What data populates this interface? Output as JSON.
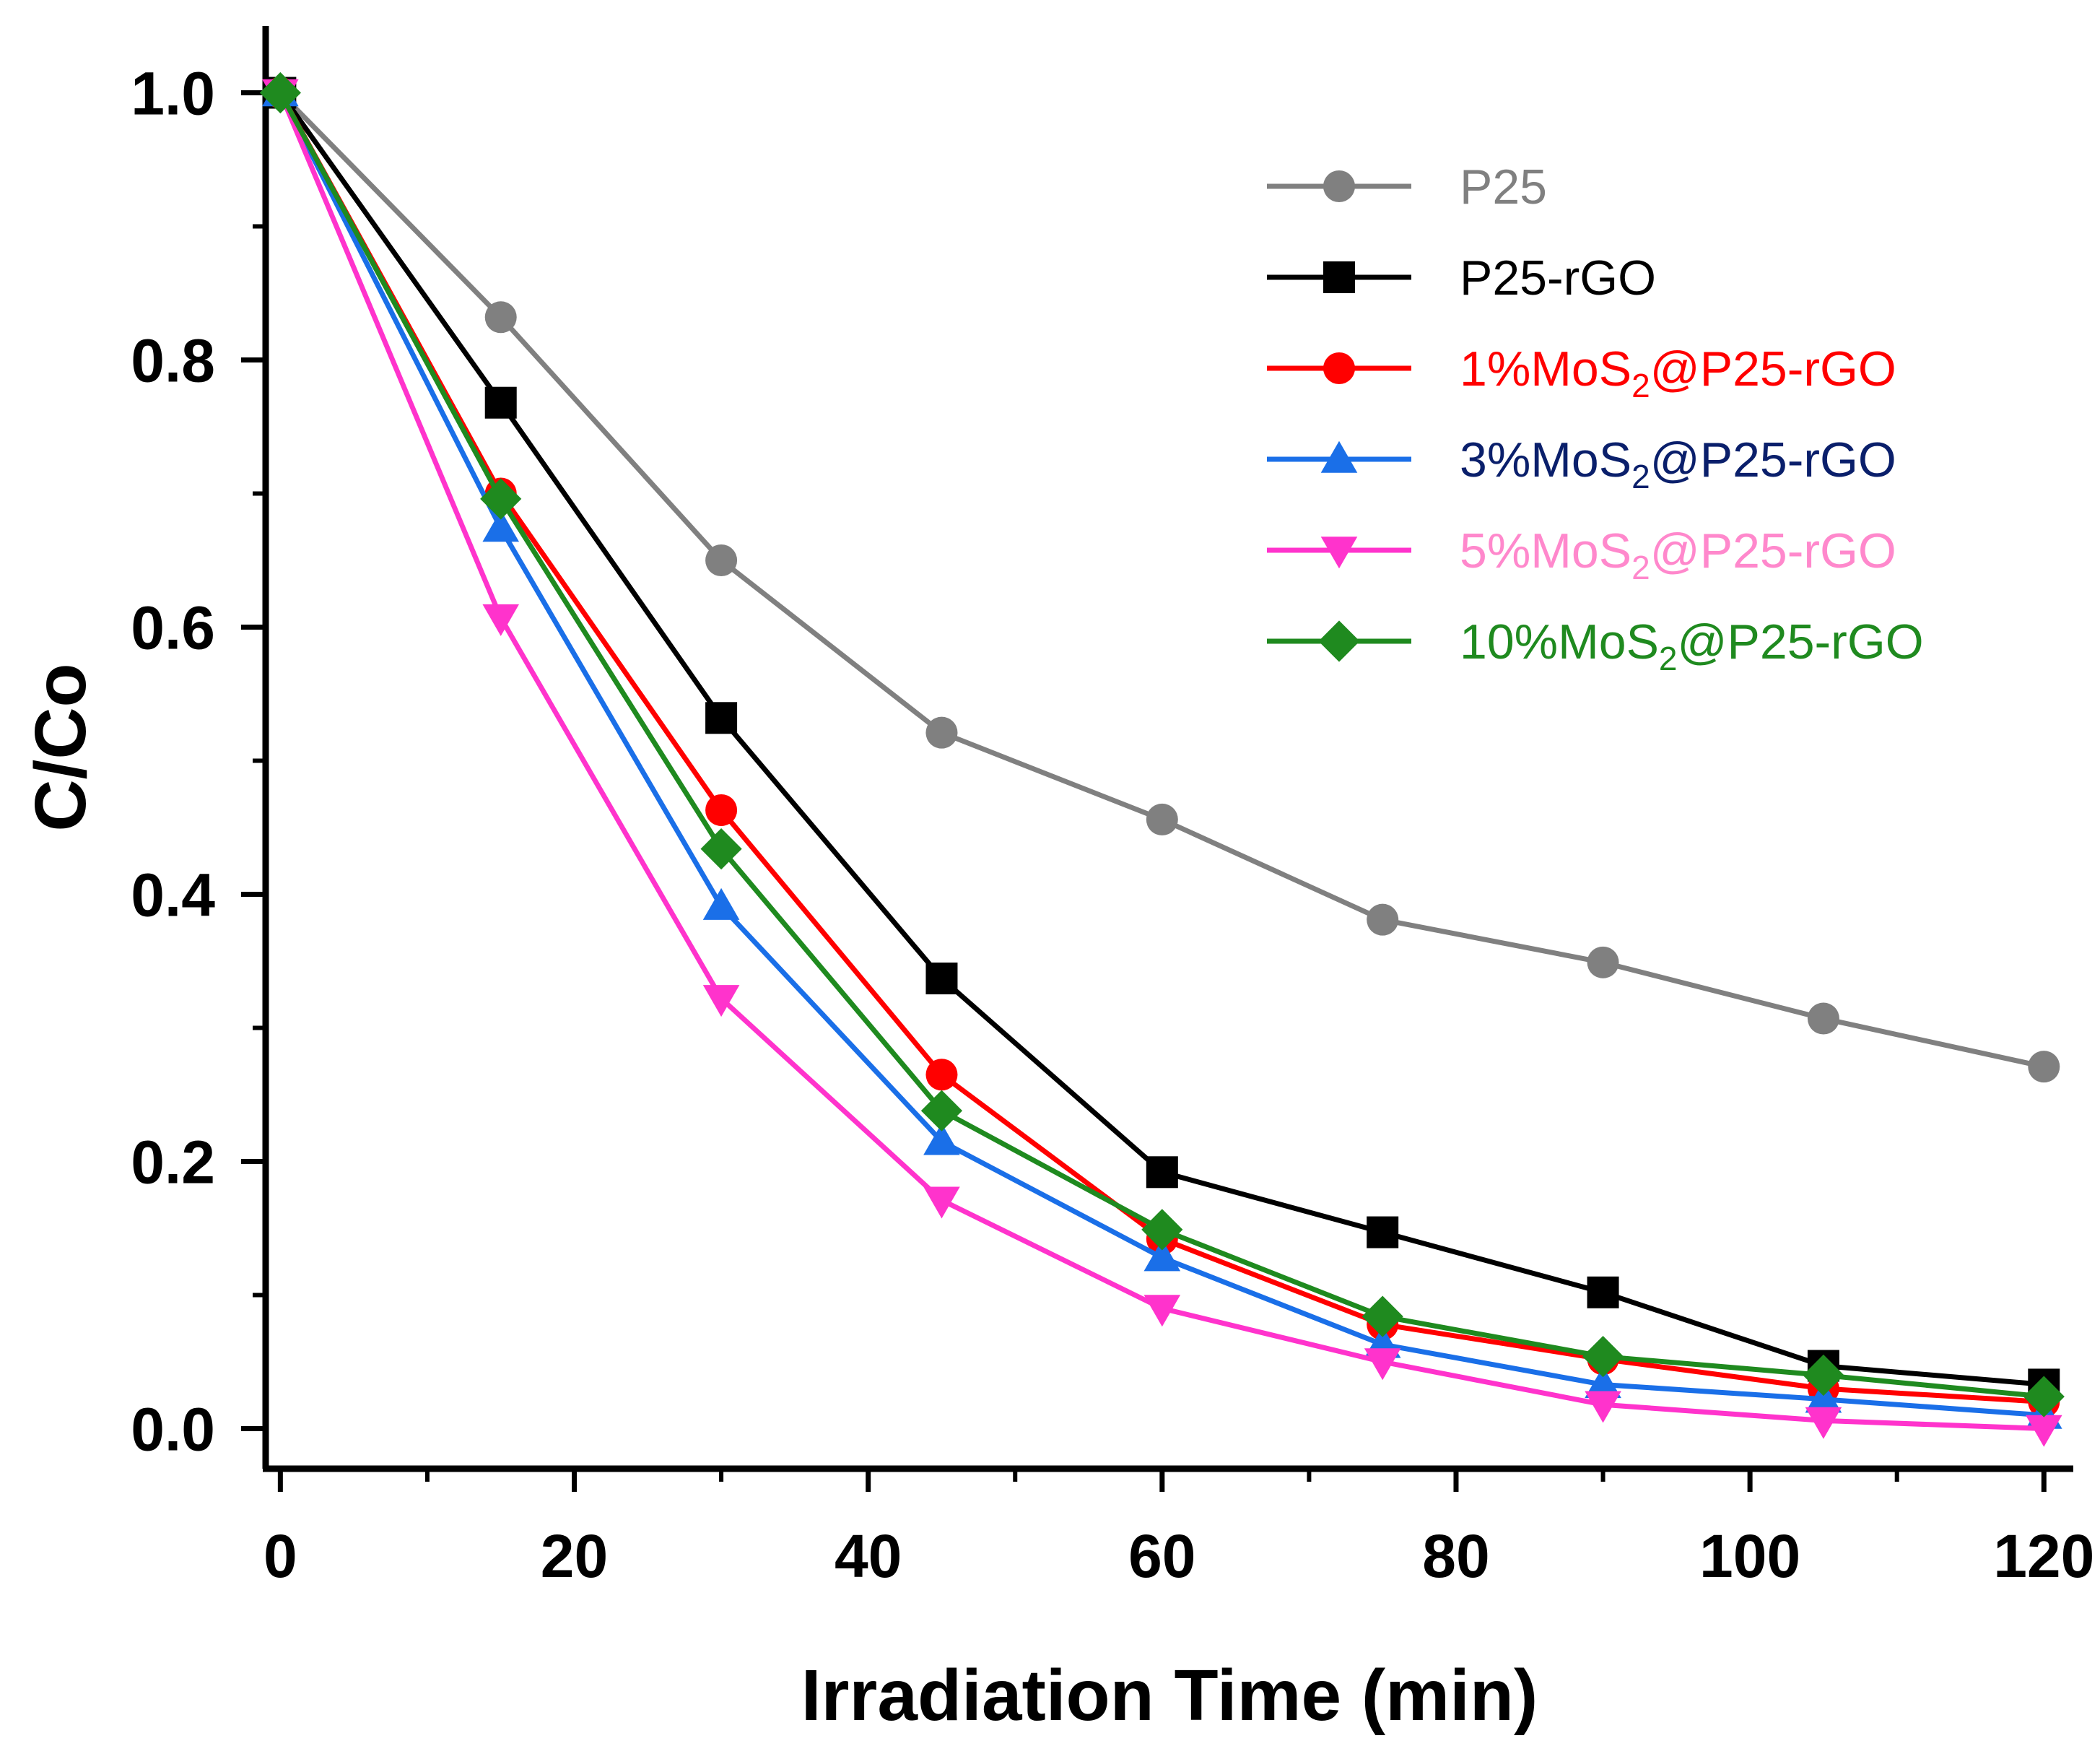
{
  "chart_data": {
    "type": "line",
    "title": "",
    "xlabel": "Irradiation Time (min)",
    "ylabel": "C/Co",
    "xlim": [
      -1,
      122
    ],
    "ylim": [
      -0.03,
      1.05
    ],
    "xticks": [
      0,
      20,
      40,
      60,
      80,
      100,
      120
    ],
    "xtick_labels": [
      "0",
      "20",
      "40",
      "60",
      "80",
      "100",
      "120"
    ],
    "yticks": [
      0.0,
      0.2,
      0.4,
      0.6,
      0.8,
      1.0
    ],
    "ytick_labels": [
      "0.0",
      "0.2",
      "0.4",
      "0.6",
      "0.8",
      "1.0"
    ],
    "legend_position": "top-right",
    "x": [
      0,
      15,
      30,
      45,
      60,
      75,
      90,
      105,
      120
    ],
    "series": [
      {
        "name": "P25",
        "label_main": "P25",
        "label_sub": "",
        "label_tail": "",
        "color": "#808080",
        "text_color": "#808080",
        "marker": "circle",
        "values": [
          1.0,
          0.832,
          0.65,
          0.521,
          0.456,
          0.381,
          0.349,
          0.307,
          0.271
        ]
      },
      {
        "name": "P25-rGO",
        "label_main": "P25-rGO",
        "label_sub": "",
        "label_tail": "",
        "color": "#000000",
        "text_color": "#000000",
        "marker": "square",
        "values": [
          1.0,
          0.768,
          0.532,
          0.337,
          0.192,
          0.147,
          0.102,
          0.047,
          0.033
        ]
      },
      {
        "name": "1%MoS2@P25-rGO",
        "label_main": "1%MoS",
        "label_sub": "2",
        "label_tail": "@P25-rGO",
        "color": "#ff0000",
        "text_color": "#ff0000",
        "marker": "circle",
        "values": [
          1.0,
          0.7,
          0.463,
          0.265,
          0.142,
          0.078,
          0.052,
          0.03,
          0.02
        ]
      },
      {
        "name": "3%MoS2@P25-rGO",
        "label_main": "3%MoS",
        "label_sub": "2",
        "label_tail": "@P25-rGO",
        "color": "#1a6fe8",
        "text_color": "#0a1f6b",
        "marker": "triangle-up",
        "values": [
          1.0,
          0.674,
          0.391,
          0.215,
          0.128,
          0.063,
          0.033,
          0.022,
          0.01
        ]
      },
      {
        "name": "5%MoS2@P25-rGO",
        "label_main": "5%MoS",
        "label_sub": "2",
        "label_tail": "@P25-rGO",
        "color": "#ff33cc",
        "text_color": "#ff88cc",
        "marker": "triangle-down",
        "values": [
          1.0,
          0.607,
          0.322,
          0.171,
          0.09,
          0.05,
          0.018,
          0.006,
          0.0
        ]
      },
      {
        "name": "10%MoS2@P25-rGO",
        "label_main": "10%MoS",
        "label_sub": "2",
        "label_tail": "@P25-rGO",
        "color": "#1f8a1f",
        "text_color": "#1f8a1f",
        "marker": "diamond",
        "values": [
          1.0,
          0.696,
          0.434,
          0.238,
          0.149,
          0.084,
          0.054,
          0.04,
          0.024
        ]
      }
    ]
  }
}
